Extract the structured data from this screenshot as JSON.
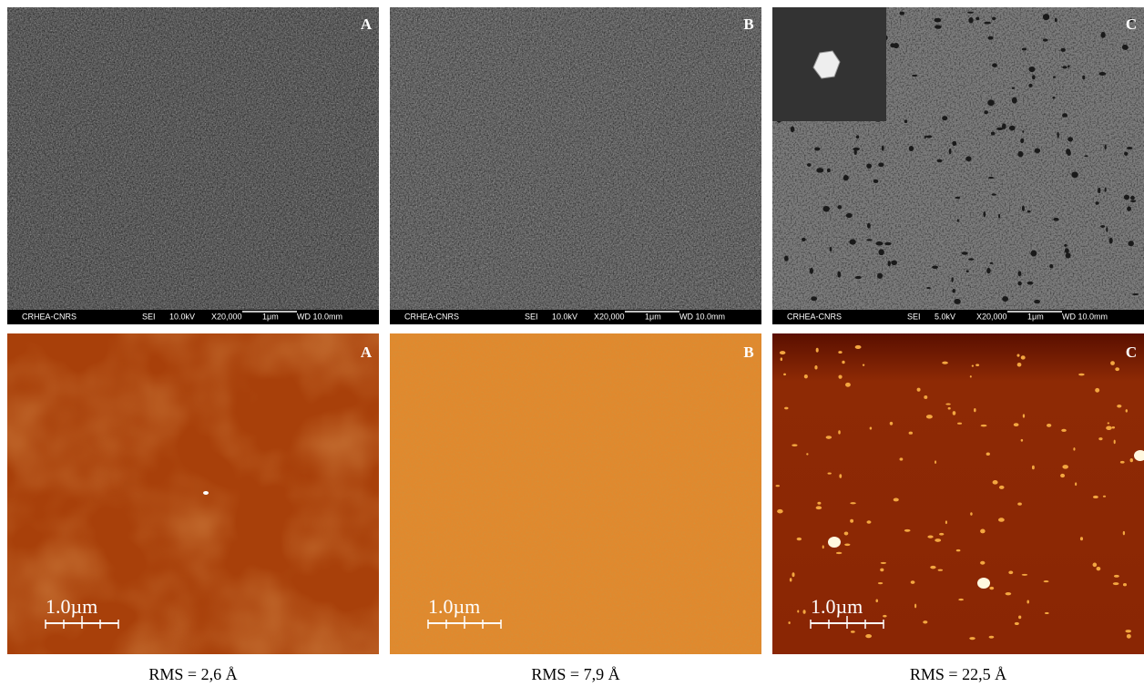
{
  "sem_panels": [
    {
      "label": "A",
      "footer": {
        "lab": "CRHEA-CNRS",
        "mode": "SEI",
        "voltage": "10.0kV",
        "magnification": "X20,000",
        "scale": "1μm",
        "working_distance": "WD 10.0mm"
      }
    },
    {
      "label": "B",
      "footer": {
        "lab": "CRHEA-CNRS",
        "mode": "SEI",
        "voltage": "10.0kV",
        "magnification": "X20,000",
        "scale": "1μm",
        "working_distance": "WD 10.0mm"
      }
    },
    {
      "label": "C",
      "footer": {
        "lab": "CRHEA-CNRS",
        "mode": "SEI",
        "voltage": "5.0kV",
        "magnification": "X20,000",
        "scale": "1μm",
        "working_distance": "WD 10.0mm"
      }
    }
  ],
  "afm_panels": [
    {
      "label": "A",
      "scale": "1.0µm",
      "caption": "RMS = 2,6 Å"
    },
    {
      "label": "B",
      "scale": "1.0µm",
      "caption": "RMS = 7,9 Å"
    },
    {
      "label": "C",
      "scale": "1.0µm",
      "caption": "RMS = 22,5 Å"
    }
  ]
}
